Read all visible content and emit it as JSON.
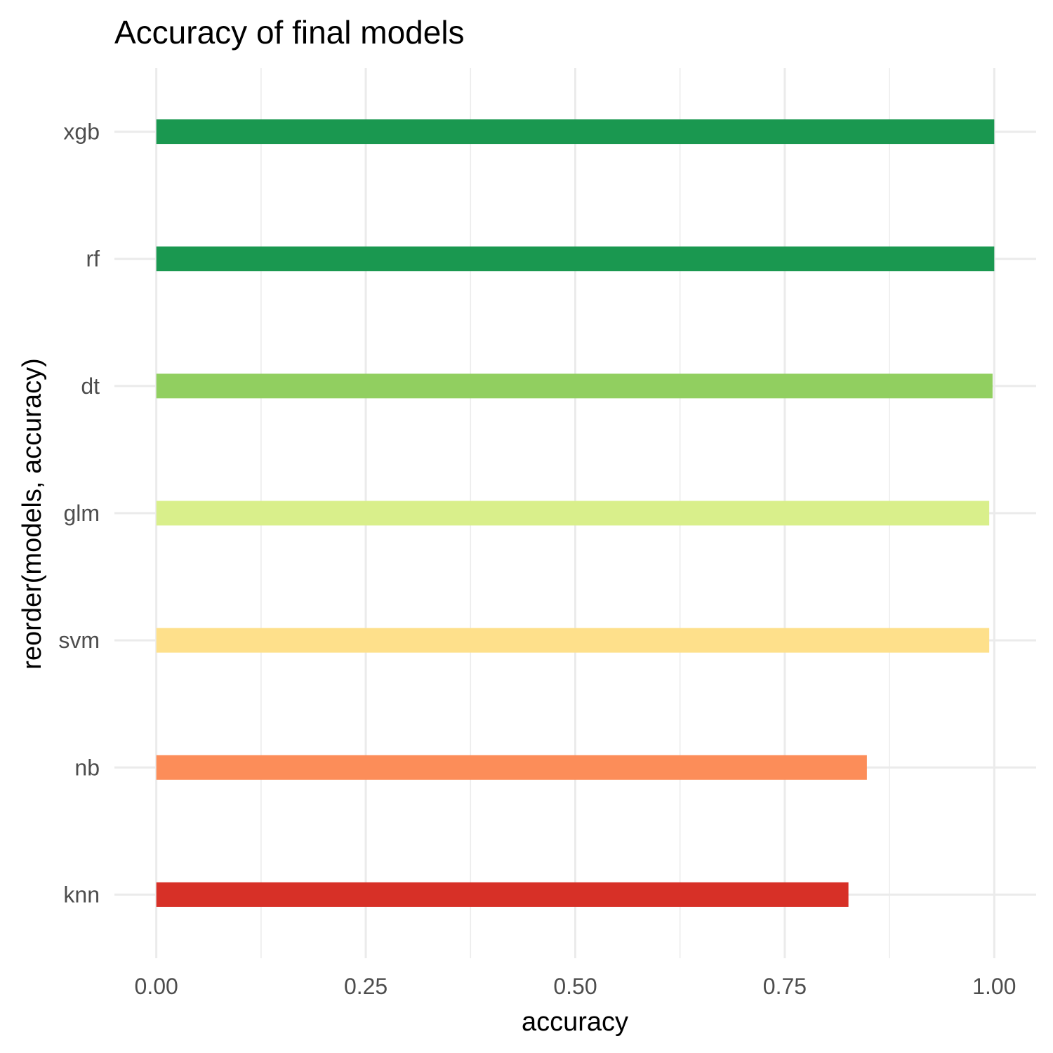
{
  "chart_data": {
    "type": "bar",
    "orientation": "horizontal",
    "title": "Accuracy of final models",
    "xlabel": "accuracy",
    "ylabel": "reorder(models, accuracy)",
    "categories": [
      "knn",
      "nb",
      "svm",
      "glm",
      "dt",
      "rf",
      "xgb"
    ],
    "values": [
      0.826,
      0.848,
      0.994,
      0.994,
      0.998,
      1.0,
      1.0
    ],
    "colors": [
      "#D73027",
      "#FC8D59",
      "#FEE08B",
      "#D9EF8B",
      "#91CF60",
      "#1A9850",
      "#1A9850"
    ],
    "xlim": [
      -0.05,
      1.05
    ],
    "xticks": [
      0.0,
      0.25,
      0.5,
      0.75,
      1.0
    ],
    "xtick_labels": [
      "0.00",
      "0.25",
      "0.50",
      "0.75",
      "1.00"
    ],
    "grid": true,
    "legend": "none"
  }
}
